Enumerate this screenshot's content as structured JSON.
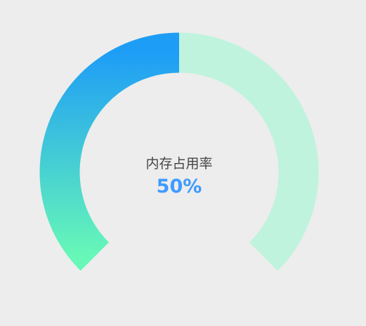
{
  "gauge": {
    "label": "内存占用率",
    "value_text": "50%",
    "fraction": 0.5,
    "colors": {
      "track": "#bff3de",
      "gradient_start": "#1e9df6",
      "gradient_end": "#67f8b7",
      "value_text": "#3e9bff",
      "label_text": "#444444",
      "background": "#ededed"
    }
  }
}
